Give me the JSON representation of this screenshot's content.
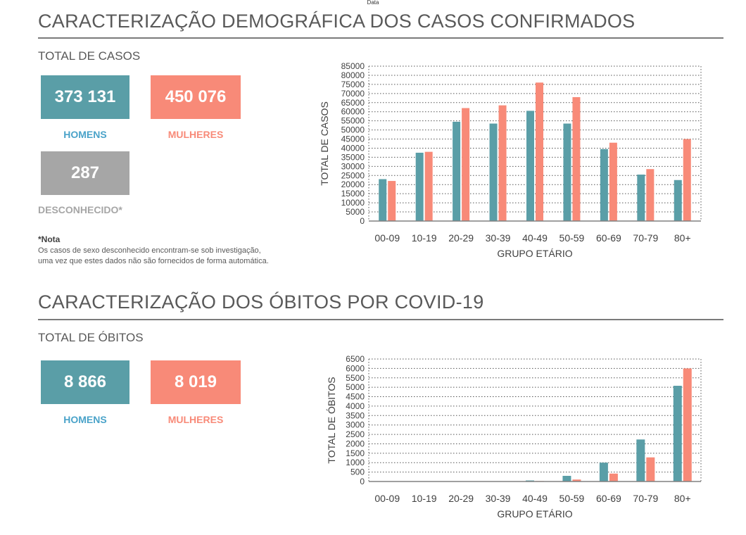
{
  "top_caption": "Data",
  "colors": {
    "homens": "#5a9ea7",
    "mulheres": "#f88a78",
    "desconhecido": "#a6a6a6",
    "label_homens": "#4aa3c9",
    "label_mulheres": "#f88a78",
    "label_desc": "#a6a6a6"
  },
  "casos": {
    "title": "CARACTERIZAÇÃO DEMOGRÁFICA DOS CASOS CONFIRMADOS",
    "subtitle": "TOTAL DE CASOS",
    "homens_value": "373 131",
    "homens_label": "HOMENS",
    "mulheres_value": "450 076",
    "mulheres_label": "MULHERES",
    "desconhecido_value": "287",
    "desconhecido_label": "DESCONHECIDO*",
    "note_title": "*Nota",
    "note_line1": "Os casos de sexo desconhecido encontram-se sob investigação,",
    "note_line2": "uma vez que estes dados não são fornecidos de forma automática."
  },
  "obitos": {
    "title": "CARACTERIZAÇÃO DOS ÓBITOS POR COVID-19",
    "subtitle": "TOTAL DE ÓBITOS",
    "homens_value": "8 866",
    "homens_label": "HOMENS",
    "mulheres_value": "8 019",
    "mulheres_label": "MULHERES"
  },
  "chart_data": [
    {
      "type": "bar",
      "title": "",
      "xlabel": "GRUPO ETÁRIO",
      "ylabel": "TOTAL DE CASOS",
      "ylim": [
        0,
        85000
      ],
      "ytick_step": 5000,
      "grid": true,
      "categories": [
        "00-09",
        "10-19",
        "20-29",
        "30-39",
        "40-49",
        "50-59",
        "60-69",
        "70-79",
        "80+"
      ],
      "series": [
        {
          "color": "#5a9ea7",
          "values": [
            23000,
            37500,
            54500,
            53500,
            60500,
            53500,
            39500,
            25500,
            22500
          ]
        },
        {
          "color": "#f88a78",
          "values": [
            22000,
            38000,
            62000,
            63500,
            76000,
            68000,
            43000,
            28500,
            45000
          ]
        }
      ]
    },
    {
      "type": "bar",
      "title": "",
      "xlabel": "GRUPO ETÁRIO",
      "ylabel": "TOTAL DE ÓBITOS",
      "ylim": [
        0,
        6500
      ],
      "ytick_step": 500,
      "grid": true,
      "categories": [
        "00-09",
        "10-19",
        "20-29",
        "30-39",
        "40-49",
        "50-59",
        "60-69",
        "70-79",
        "80+"
      ],
      "series": [
        {
          "color": "#5a9ea7",
          "values": [
            1,
            2,
            6,
            15,
            55,
            300,
            1000,
            2230,
            5080
          ]
        },
        {
          "color": "#f88a78",
          "values": [
            0,
            1,
            3,
            8,
            25,
            105,
            420,
            1280,
            6000
          ]
        }
      ]
    }
  ]
}
